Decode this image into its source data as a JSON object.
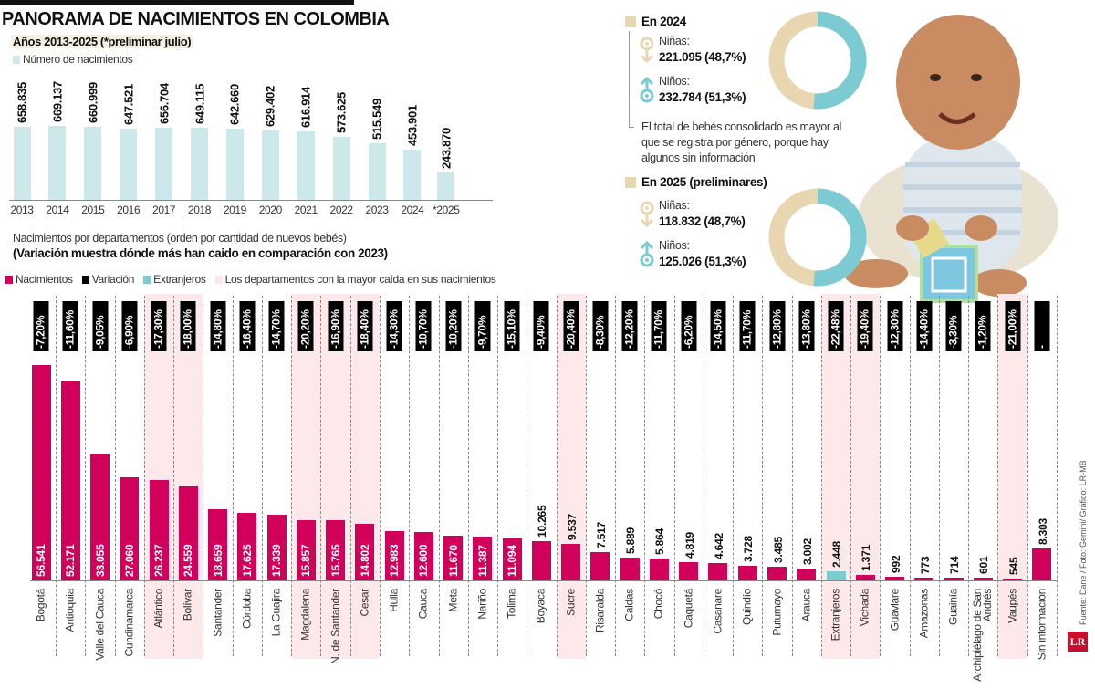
{
  "header": {
    "title": "PANORAMA DE NACIMIENTOS EN COLOMBIA",
    "subtitle": "Años 2013-2025 (*preliminar julio)",
    "legend_births": "Número de nacimientos"
  },
  "departments_header": {
    "line1": "Nacimientos por departamentos (orden por cantidad de nuevos bebés)",
    "line2": "(Variación muestra dónde más han caido en comparación con 2023)",
    "legend": [
      {
        "label": "Nacimientos",
        "color": "#d1005a"
      },
      {
        "label": "Variación",
        "color": "#000000"
      },
      {
        "label": "Extranjeros",
        "color": "#7ccbd3"
      },
      {
        "label": "Los departamentos con la mayor caída en sus nacimientos",
        "color": "#fde8ea"
      }
    ]
  },
  "gender": {
    "y2024": {
      "heading": "En 2024",
      "girls_label": "Niñas:",
      "girls_value": "221.095 (48,7%)",
      "girls_pct": 48.7,
      "boys_label": "Niños:",
      "boys_value": "232.784 (51,3%)",
      "boys_pct": 51.3
    },
    "note": "El total de bebés consolidado es mayor al que se registra por género, porque hay algunos sin información",
    "y2025": {
      "heading": "En 2025 (preliminares)",
      "girls_label": "Niñas:",
      "girls_value": "118.832 (48,7%)",
      "girls_pct": 48.7,
      "boys_label": "Niños:",
      "boys_value": "125.026 (51,3%)",
      "boys_pct": 51.3
    },
    "colors": {
      "girls": "#e8d6b0",
      "boys": "#7ccbd3"
    }
  },
  "footer": {
    "source": "Fuente: Dane / Foto: Gemini/ Gráfico: LR-MB",
    "logo": "LR"
  },
  "chart_data": [
    {
      "type": "bar",
      "title": "Años 2013-2025 (*preliminar julio)",
      "categories": [
        "2013",
        "2014",
        "2015",
        "2016",
        "2017",
        "2018",
        "2019",
        "2020",
        "2021",
        "2022",
        "2023",
        "2024",
        "*2025"
      ],
      "series": [
        {
          "name": "Número de nacimientos",
          "values": [
            658835,
            669137,
            660999,
            647521,
            656704,
            649115,
            642660,
            629402,
            616914,
            573625,
            515549,
            453901,
            243870
          ],
          "labels": [
            "658.835",
            "669.137",
            "660.999",
            "647.521",
            "656.704",
            "649.115",
            "642.660",
            "629.402",
            "616.914",
            "573.625",
            "515.549",
            "453.901",
            "243.870"
          ]
        }
      ],
      "color": "#cde8ea"
    },
    {
      "type": "bar",
      "title": "Nacimientos por departamentos (orden por cantidad de nuevos bebés)",
      "categories": [
        "Bogotá",
        "Antioquia",
        "Valle del Cauca",
        "Cundinamarca",
        "Atlántico",
        "Bolívar",
        "Santander",
        "Córdoba",
        "La Guajira",
        "Magdalena",
        "N. de Santander",
        "Cesar",
        "Huila",
        "Cauca",
        "Meta",
        "Nariño",
        "Tolima",
        "Boyacá",
        "Sucre",
        "Risaralda",
        "Caldas",
        "Chocó",
        "Caquetá",
        "Casanare",
        "Quindío",
        "Putumayo",
        "Arauca",
        "Extranjeros",
        "Vichada",
        "Guaviare",
        "Amazonas",
        "Guainía",
        "Archipiélago de San Andrés",
        "Vaupés",
        "Sin información"
      ],
      "series": [
        {
          "name": "Nacimientos",
          "values": [
            56541,
            52171,
            33055,
            27060,
            26237,
            24559,
            18659,
            17625,
            17339,
            15857,
            15765,
            14802,
            12983,
            12600,
            11670,
            11387,
            11094,
            10265,
            9537,
            7517,
            5889,
            5864,
            4819,
            4642,
            3728,
            3485,
            3002,
            2448,
            1371,
            992,
            773,
            714,
            601,
            545,
            8303
          ],
          "labels": [
            "56.541",
            "52.171",
            "33.055",
            "27.060",
            "26.237",
            "24.559",
            "18.659",
            "17.625",
            "17.339",
            "15.857",
            "15.765",
            "14.802",
            "12.983",
            "12.600",
            "11.670",
            "11.387",
            "11.094",
            "10.265",
            "9.537",
            "7.517",
            "5.889",
            "5.864",
            "4.819",
            "4.642",
            "3.728",
            "3.485",
            "3.002",
            "2.448",
            "1.371",
            "992",
            "773",
            "714",
            "601",
            "545",
            "8.303"
          ]
        },
        {
          "name": "Variación",
          "labels": [
            "-7,20%",
            "-11,60%",
            "-9,05%",
            "-6,90%",
            "-17,30%",
            "-18,00%",
            "-14,80%",
            "-16,40%",
            "-14,70%",
            "-20,20%",
            "-16,90%",
            "-18,40%",
            "-14,30%",
            "-10,70%",
            "-10,20%",
            "-9,70%",
            "-15,10%",
            "-9,40%",
            "-20,40%",
            "-8,30%",
            "-12,20%",
            "-11,70%",
            "-6,20%",
            "-14,50%",
            "-11,70%",
            "-12,80%",
            "-13,80%",
            "-22,48%",
            "-19,40%",
            "-12,30%",
            "-14,40%",
            "-3,30%",
            "-1,20%",
            "-21,00%",
            "-"
          ]
        }
      ],
      "highlighted": [
        "Atlántico",
        "Bolívar",
        "Magdalena",
        "N. de Santander",
        "Cesar",
        "Sucre",
        "Extranjeros",
        "Vichada",
        "Vaupés"
      ],
      "special_color": {
        "Extranjeros": "#7ccbd3"
      },
      "color": "#d1005a"
    }
  ]
}
